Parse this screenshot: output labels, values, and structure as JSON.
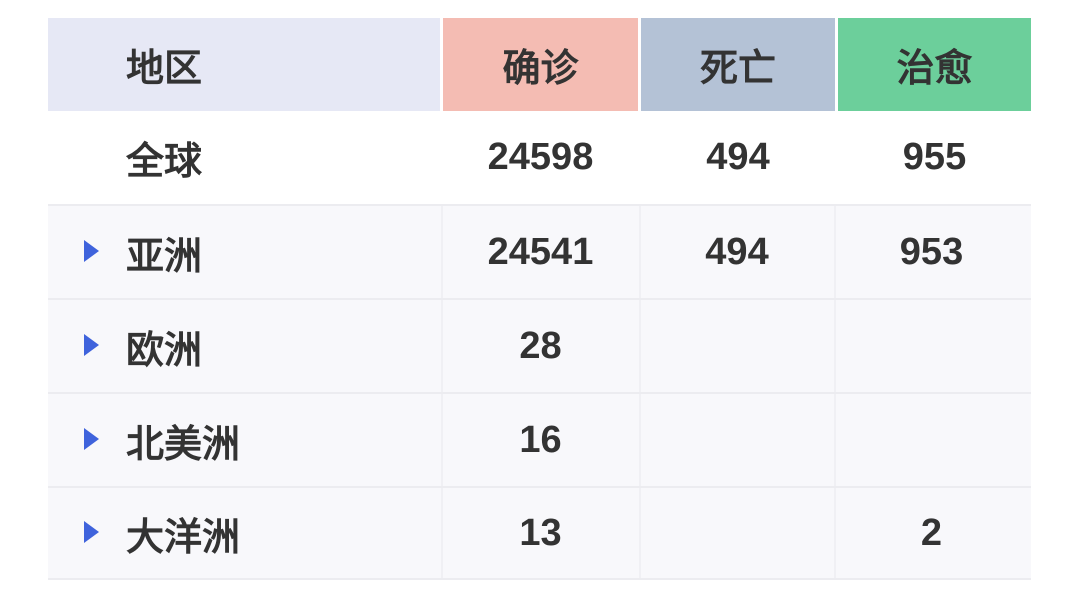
{
  "header": {
    "region": "地区",
    "confirmed": "确诊",
    "deaths": "死亡",
    "recovered": "治愈"
  },
  "colors": {
    "region_header": "#e6e8f5",
    "confirmed_header": "#f4bcb3",
    "deaths_header": "#b4c2d6",
    "recovered_header": "#6ccf9b",
    "expand_icon": "#3f63dc"
  },
  "rows": [
    {
      "region": "全球",
      "confirmed": "24598",
      "deaths": "494",
      "recovered": "955"
    },
    {
      "region": "亚洲",
      "confirmed": "24541",
      "deaths": "494",
      "recovered": "953"
    },
    {
      "region": "欧洲",
      "confirmed": "28",
      "deaths": "",
      "recovered": ""
    },
    {
      "region": "北美洲",
      "confirmed": "16",
      "deaths": "",
      "recovered": ""
    },
    {
      "region": "大洋洲",
      "confirmed": "13",
      "deaths": "",
      "recovered": "2"
    }
  ]
}
